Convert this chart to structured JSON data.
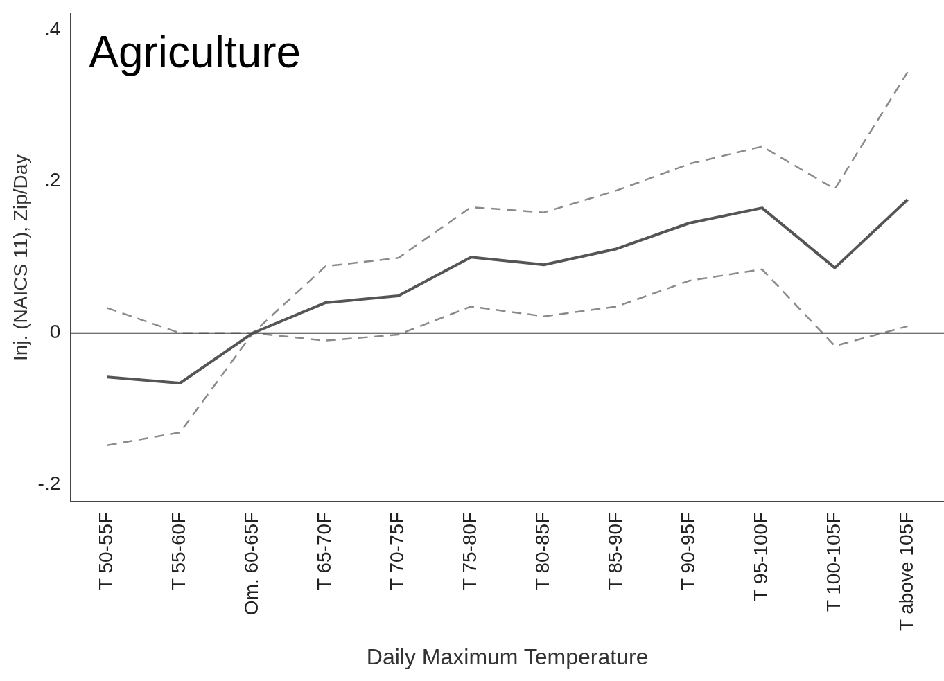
{
  "chart_data": {
    "type": "line",
    "title": "Agriculture",
    "xlabel": "Daily Maximum Temperature",
    "ylabel": "Inj. (NAICS 11), Zip/Day",
    "categories": [
      "T 50-55F",
      "T 55-60F",
      "Om. 60-65F",
      "T 65-70F",
      "T 70-75F",
      "T 75-80F",
      "T 80-85F",
      "T 85-90F",
      "T 90-95F",
      "T 95-100F",
      "T 100-105F",
      "T above 105F"
    ],
    "series": [
      {
        "color": "#555555",
        "line_style": "solid",
        "values": [
          -0.058,
          -0.066,
          0,
          0.04,
          0.049,
          0.1,
          0.09,
          0.111,
          0.145,
          0.165,
          0.086,
          0.176
        ]
      },
      {
        "color": "#8a8a8a",
        "line_style": "dashed",
        "values": [
          0.033,
          0,
          0,
          0.088,
          0.099,
          0.166,
          0.159,
          0.188,
          0.223,
          0.246,
          0.19,
          0.344
        ]
      },
      {
        "color": "#8a8a8a",
        "line_style": "dashed",
        "values": [
          -0.148,
          -0.131,
          0,
          -0.01,
          -0.002,
          0.035,
          0.022,
          0.035,
          0.069,
          0.084,
          -0.017,
          0.009
        ]
      }
    ],
    "ylim": [
      -0.222,
      0.421
    ],
    "yticks": [
      {
        "value": -0.2,
        "label": "-.2"
      },
      {
        "value": 0,
        "label": "0"
      },
      {
        "value": 0.2,
        "label": ".2"
      },
      {
        "value": 0.4,
        "label": ".4"
      }
    ],
    "ref_lines": [
      {
        "axis": "y",
        "value": 0,
        "color": "#444444"
      }
    ],
    "grid": false,
    "legend": false,
    "marker": "none"
  }
}
